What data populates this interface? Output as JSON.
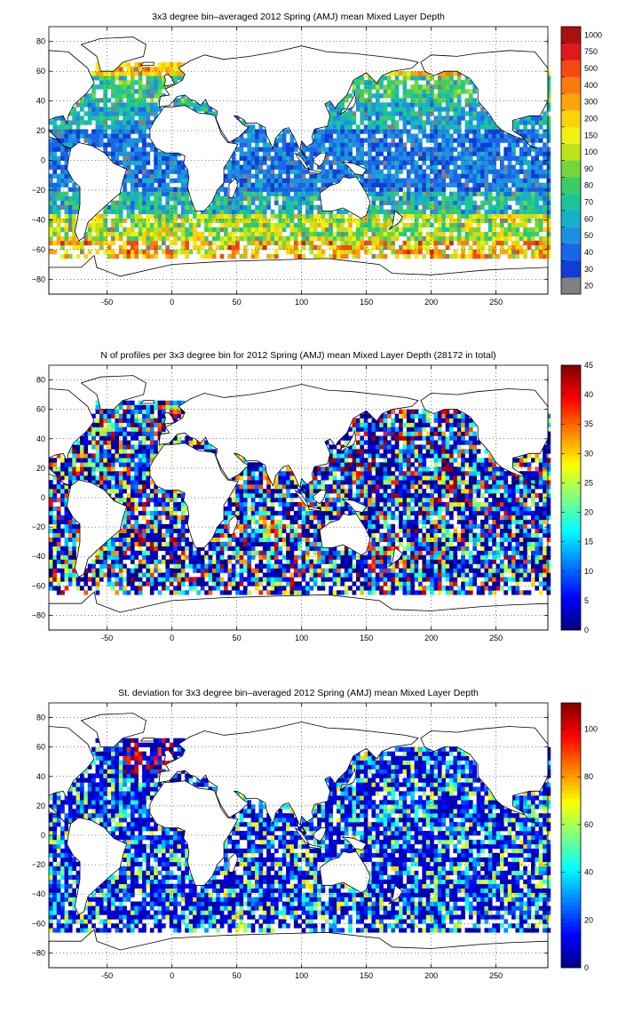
{
  "figure": {
    "panels": [
      {
        "title": "3x3 degree bin–averaged 2012 Spring (AMJ) mean Mixed Layer Depth",
        "colorbar": {
          "type": "categorical",
          "labels": [
            "20",
            "30",
            "40",
            "50",
            "60",
            "70",
            "80",
            "90",
            "100",
            "150",
            "200",
            "300",
            "400",
            "500",
            "750",
            "1000"
          ],
          "colors": [
            "#808080",
            "#0e3ed6",
            "#1a66e8",
            "#1f8fe0",
            "#18b0c8",
            "#1cc49a",
            "#3ccc66",
            "#77d43a",
            "#bde21e",
            "#f2ef14",
            "#fcd20a",
            "#fca40e",
            "#fb7a10",
            "#f44a12",
            "#e0191b",
            "#a8120f"
          ]
        }
      },
      {
        "title": "N of profiles per 3x3 degree bin for 2012 Spring (AMJ) mean Mixed Layer Depth  (28172 in total)",
        "colorbar": {
          "type": "continuous",
          "labels": [
            "0",
            "5",
            "10",
            "15",
            "20",
            "25",
            "30",
            "35",
            "40",
            "45"
          ],
          "min": 0,
          "max": 45
        }
      },
      {
        "title": "St. deviation for 3x3 degree bin–averaged 2012 Spring (AMJ) mean Mixed Layer Depth",
        "colorbar": {
          "type": "continuous",
          "labels": [
            "0",
            "20",
            "40",
            "60",
            "80",
            "100"
          ],
          "min": 0,
          "max": 111
        }
      }
    ],
    "x_ticks": [
      "-50",
      "0",
      "50",
      "100",
      "150",
      "200",
      "250"
    ],
    "y_ticks": [
      "80",
      "60",
      "40",
      "20",
      "0",
      "−20",
      "−40",
      "−60",
      "−80"
    ]
  },
  "chart_data": [
    {
      "type": "heatmap",
      "title": "3x3 degree bin–averaged 2012 Spring (AMJ) mean Mixed Layer Depth",
      "xlim": [
        -95,
        290
      ],
      "ylim": [
        -90,
        90
      ],
      "xticks": [
        -50,
        0,
        50,
        100,
        150,
        200,
        250
      ],
      "yticks": [
        80,
        60,
        40,
        20,
        0,
        -20,
        -40,
        -60,
        -80
      ],
      "grid": true,
      "bin_size_deg": 3,
      "colorbar_levels": [
        20,
        30,
        40,
        50,
        60,
        70,
        80,
        90,
        100,
        150,
        200,
        300,
        400,
        500,
        750,
        1000
      ],
      "zonal_pattern": [
        {
          "lat_range": [
            60,
            80
          ],
          "typical": 150
        },
        {
          "lat_range": [
            20,
            60
          ],
          "typical": 60
        },
        {
          "lat_range": [
            -20,
            20
          ],
          "typical": 40
        },
        {
          "lat_range": [
            -35,
            -20
          ],
          "typical": 60
        },
        {
          "lat_range": [
            -55,
            -35
          ],
          "typical": 120
        },
        {
          "lat_range": [
            -65,
            -55
          ],
          "typical": 300
        }
      ]
    },
    {
      "type": "heatmap",
      "title": "N of profiles per 3x3 degree bin for 2012 Spring (AMJ) mean Mixed Layer Depth  (28172 in total)",
      "xlim": [
        -95,
        290
      ],
      "ylim": [
        -90,
        90
      ],
      "xticks": [
        -50,
        0,
        50,
        100,
        150,
        200,
        250
      ],
      "yticks": [
        80,
        60,
        40,
        20,
        0,
        -20,
        -40,
        -60,
        -80
      ],
      "grid": true,
      "clim": [
        0,
        45
      ],
      "total_profiles": 28172,
      "typical": 6
    },
    {
      "type": "heatmap",
      "title": "St. deviation for 3x3 degree bin–averaged 2012 Spring (AMJ) mean Mixed Layer Depth",
      "xlim": [
        -95,
        290
      ],
      "ylim": [
        -90,
        90
      ],
      "xticks": [
        -50,
        0,
        50,
        100,
        150,
        200,
        250
      ],
      "yticks": [
        80,
        60,
        40,
        20,
        0,
        -20,
        -40,
        -60,
        -80
      ],
      "grid": true,
      "clim": [
        0,
        111
      ],
      "typical": 12
    }
  ]
}
